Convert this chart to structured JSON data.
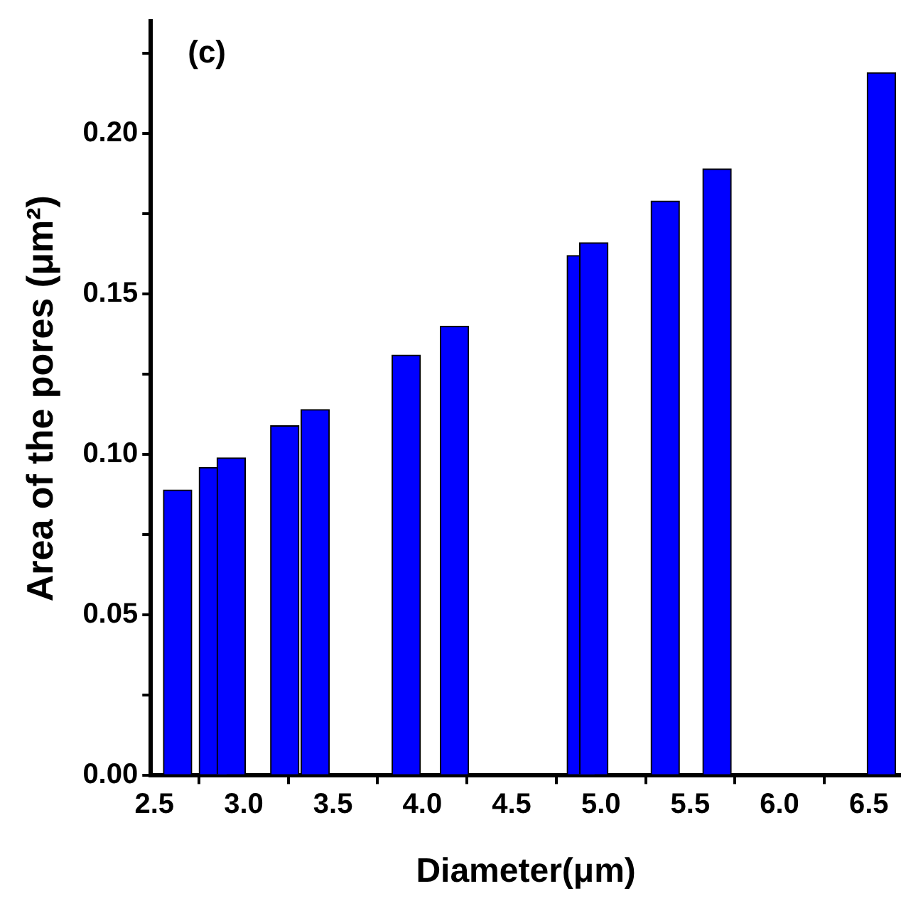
{
  "chart_data": {
    "type": "bar",
    "xlabel": "Diameter(μm)",
    "ylabel": "Area of the pores (μm²)",
    "annotations": [
      "(c)"
    ],
    "x": [
      2.63,
      2.83,
      2.93,
      3.23,
      3.4,
      3.91,
      4.18,
      4.89,
      4.96,
      5.36,
      5.65,
      6.57
    ],
    "values": [
      0.089,
      0.096,
      0.099,
      0.109,
      0.114,
      0.131,
      0.14,
      0.162,
      0.166,
      0.179,
      0.189,
      0.219
    ],
    "color": "#0000ff",
    "xlim": [
      2.48,
      6.68
    ],
    "xticks": [
      2.5,
      "3.0",
      3.5,
      "4.0",
      4.5,
      "5.0",
      5.5,
      "6.0",
      6.5
    ],
    "ylim": [
      0,
      0.235
    ],
    "yticks": [
      {
        "value": 0,
        "label": "0.00"
      },
      {
        "value": 0.025,
        "label": null
      },
      {
        "value": 0.05,
        "label": "0.05"
      },
      {
        "value": 0.075,
        "label": null
      },
      {
        "value": 0.1,
        "label": "0.10"
      },
      {
        "value": 0.125,
        "label": null
      },
      {
        "value": 0.15,
        "label": "0.15"
      },
      {
        "value": 0.175,
        "label": null
      },
      {
        "value": 0.2,
        "label": "0.20"
      },
      {
        "value": 0.225,
        "label": null
      }
    ],
    "grid": false,
    "legend": false
  }
}
